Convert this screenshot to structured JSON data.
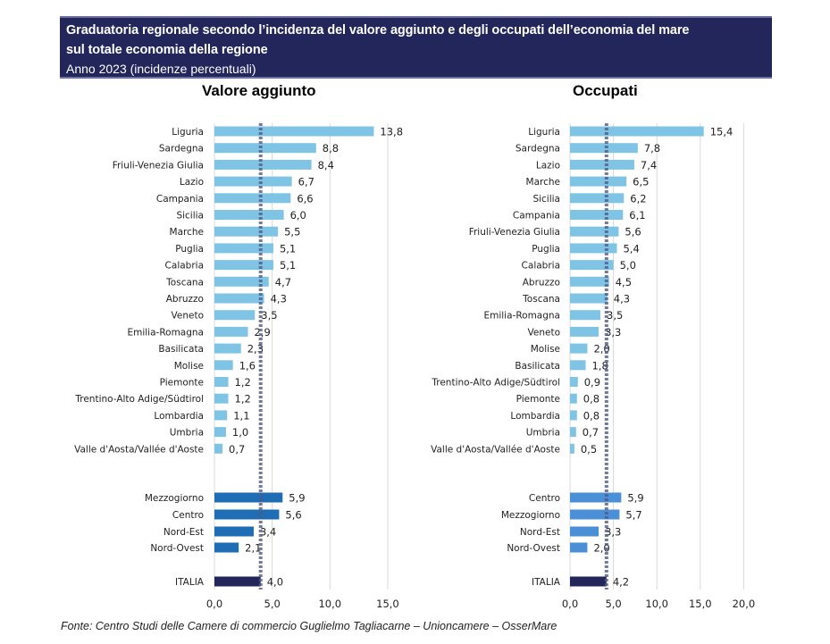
{
  "header": {
    "title_line1": "Graduatoria regionale secondo l’incidenza del valore aggiunto e degli occupati dell’economia del mare",
    "title_line2": "sul totale economia della regione",
    "subtitle": "Anno 2023 (incidenze percentuali)"
  },
  "colors": {
    "header_bg": "#22265b",
    "region_bar": "#7fc4e4",
    "macro_bar_left": "#1f6db5",
    "macro_bar_right": "#4b8fd6",
    "italia_bar": "#22265b",
    "reference_line": "#4f5a87",
    "grid": "#d9d9d9"
  },
  "source": "Fonte: Centro Studi delle Camere di commercio Guglielmo Tagliacarne – Unioncamere – OsserMare",
  "chart_data": [
    {
      "type": "bar",
      "orientation": "horizontal",
      "title": "Valore aggiunto",
      "xlabel": "",
      "ylabel": "",
      "xlim": [
        0,
        15
      ],
      "xticks": [
        "0,0",
        "5,0",
        "10,0",
        "15,0"
      ],
      "grid": true,
      "reference_line": {
        "label": "ITALIA",
        "value": 4.0,
        "style": "dotted"
      },
      "regions": {
        "categories": [
          "Liguria",
          "Sardegna",
          "Friuli-Venezia Giulia",
          "Lazio",
          "Campania",
          "Sicilia",
          "Marche",
          "Puglia",
          "Calabria",
          "Toscana",
          "Abruzzo",
          "Veneto",
          "Emilia-Romagna",
          "Basilicata",
          "Molise",
          "Piemonte",
          "Trentino-Alto Adige/Südtirol",
          "Lombardia",
          "Umbria",
          "Valle d'Aosta/Vallée d'Aoste"
        ],
        "values": [
          13.8,
          8.8,
          8.4,
          6.7,
          6.6,
          6.0,
          5.5,
          5.1,
          5.1,
          4.7,
          4.3,
          3.5,
          2.9,
          2.3,
          1.6,
          1.2,
          1.2,
          1.1,
          1.0,
          0.7
        ],
        "labels": [
          "13,8",
          "8,8",
          "8,4",
          "6,7",
          "6,6",
          "6,0",
          "5,5",
          "5,1",
          "5,1",
          "4,7",
          "4,3",
          "3,5",
          "2,9",
          "2,3",
          "1,6",
          "1,2",
          "1,2",
          "1,1",
          "1,0",
          "0,7"
        ]
      },
      "macro_areas": {
        "categories": [
          "Mezzogiorno",
          "Centro",
          "Nord-Est",
          "Nord-Ovest"
        ],
        "values": [
          5.9,
          5.6,
          3.4,
          2.1
        ],
        "labels": [
          "5,9",
          "5,6",
          "3,4",
          "2,1"
        ]
      },
      "total": {
        "category": "ITALIA",
        "value": 4.0,
        "label": "4,0"
      }
    },
    {
      "type": "bar",
      "orientation": "horizontal",
      "title": "Occupati",
      "xlabel": "",
      "ylabel": "",
      "xlim": [
        0,
        20
      ],
      "xticks": [
        "0,0",
        "5,0",
        "10,0",
        "15,0",
        "20,0"
      ],
      "grid": true,
      "reference_line": {
        "label": "ITALIA",
        "value": 4.2,
        "style": "dotted"
      },
      "regions": {
        "categories": [
          "Liguria",
          "Sardegna",
          "Lazio",
          "Marche",
          "Sicilia",
          "Campania",
          "Friuli-Venezia Giulia",
          "Puglia",
          "Calabria",
          "Abruzzo",
          "Toscana",
          "Emilia-Romagna",
          "Veneto",
          "Molise",
          "Basilicata",
          "Trentino-Alto Adige/Südtirol",
          "Piemonte",
          "Lombardia",
          "Umbria",
          "Valle d'Aosta/Vallée d'Aoste"
        ],
        "values": [
          15.4,
          7.8,
          7.4,
          6.5,
          6.2,
          6.1,
          5.6,
          5.4,
          5.0,
          4.5,
          4.3,
          3.5,
          3.3,
          2.0,
          1.8,
          0.9,
          0.8,
          0.8,
          0.7,
          0.5
        ],
        "labels": [
          "15,4",
          "7,8",
          "7,4",
          "6,5",
          "6,2",
          "6,1",
          "5,6",
          "5,4",
          "5,0",
          "4,5",
          "4,3",
          "3,5",
          "3,3",
          "2,0",
          "1,8",
          "0,9",
          "0,8",
          "0,8",
          "0,7",
          "0,5"
        ]
      },
      "macro_areas": {
        "categories": [
          "Centro",
          "Mezzogiorno",
          "Nord-Est",
          "Nord-Ovest"
        ],
        "values": [
          5.9,
          5.7,
          3.3,
          2.0
        ],
        "labels": [
          "5,9",
          "5,7",
          "3,3",
          "2,0"
        ]
      },
      "total": {
        "category": "ITALIA",
        "value": 4.2,
        "label": "4,2"
      }
    }
  ]
}
